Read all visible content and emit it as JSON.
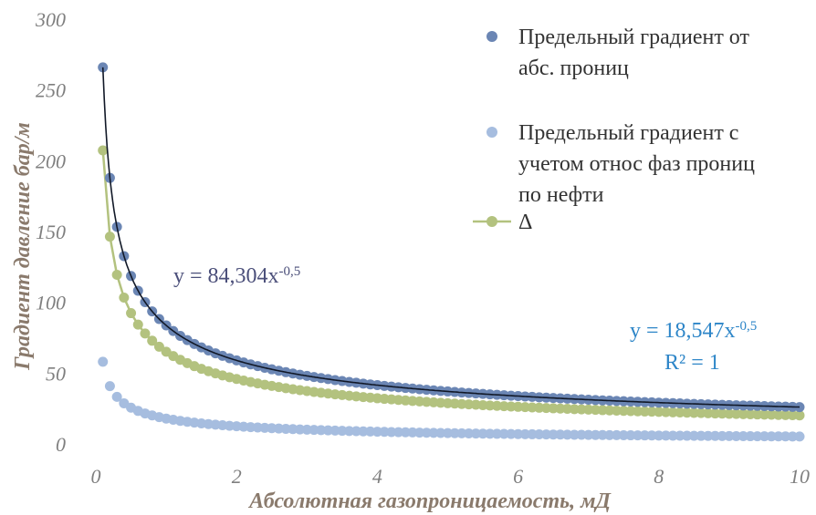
{
  "colors": {
    "abs": "#6b86b4",
    "rel": "#a6bddf",
    "delta": "#b3c27f",
    "trend1": "#111827",
    "eq1": "#4b4f7a",
    "eq2": "#2e86c8"
  },
  "chart_data": {
    "type": "scatter",
    "title": "",
    "xlabel": "Абсолютная газопроницаемость, мД",
    "ylabel": "Градиент давление бар/м",
    "xlim": [
      0,
      10
    ],
    "ylim": [
      0,
      300
    ],
    "x_ticks": [
      "0",
      "2",
      "4",
      "6",
      "8",
      "10"
    ],
    "y_ticks": [
      "0",
      "50",
      "100",
      "150",
      "200",
      "250",
      "300"
    ],
    "legend_position": "top-right",
    "series": [
      {
        "name": "Предельный градиент от абс. прониц",
        "name_lines": [
          "Предельный градиент от",
          "абс. прониц"
        ],
        "marker": "dot",
        "color_key": "abs",
        "formula": {
          "a": 84.304,
          "b": -0.5
        },
        "x_start": 0.1,
        "x_end": 10,
        "x_step": 0.1
      },
      {
        "name": "Предельный градиент с учетом относ фаз прониц по нефти",
        "name_lines": [
          "Предельный градиент с",
          "учетом относ фаз прониц",
          "по нефти"
        ],
        "marker": "dot",
        "color_key": "rel",
        "formula": {
          "a": 18.547,
          "b": -0.5
        },
        "x_start": 0.1,
        "x_end": 10,
        "x_step": 0.1
      },
      {
        "name": "Δ",
        "name_lines": [
          "Δ"
        ],
        "marker": "line-dot",
        "color_key": "delta",
        "formula": {
          "a": 65.757,
          "b": -0.5
        },
        "x_start": 0.1,
        "x_end": 10,
        "x_step": 0.1
      }
    ],
    "trendlines": [
      {
        "series": 0,
        "equation_base": "y = 84,304x",
        "equation_exp": "-0,5",
        "r2": ""
      },
      {
        "series": 1,
        "equation_base": "y = 18,547x",
        "equation_exp": "-0,5",
        "r2": "R² = 1"
      }
    ]
  }
}
